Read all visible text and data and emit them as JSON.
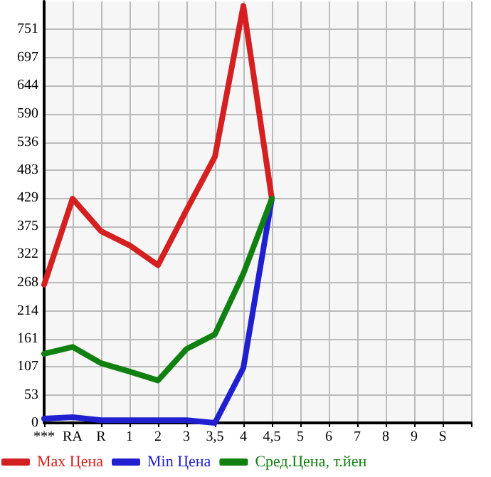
{
  "chart_data": {
    "type": "line",
    "categories": [
      "***",
      "RA",
      "R",
      "1",
      "2",
      "3",
      "3,5",
      "4",
      "4,5",
      "5",
      "6",
      "7",
      "8",
      "9",
      "S",
      null
    ],
    "series": [
      {
        "name": "Max Цена",
        "color": "#d42020",
        "values": [
          264,
          428,
          366,
          339,
          301,
          406,
          508,
          796,
          428,
          null,
          null,
          null,
          null,
          null,
          null,
          null
        ]
      },
      {
        "name": "Min Цена",
        "color": "#2020d0",
        "values": [
          8,
          11,
          5,
          5,
          5,
          5,
          0,
          105,
          428,
          null,
          null,
          null,
          null,
          null,
          null,
          null
        ]
      },
      {
        "name": "Сред.Цена, т.йен",
        "color": "#108010",
        "values": [
          132,
          145,
          114,
          98,
          81,
          141,
          169,
          285,
          428,
          null,
          null,
          null,
          null,
          null,
          null,
          null
        ]
      }
    ],
    "ylim": [
      0,
      804.6
    ],
    "yticks": [
      0,
      53,
      107,
      161,
      214,
      268,
      322,
      375,
      429,
      483,
      536,
      590,
      644,
      697,
      751
    ],
    "grid": true,
    "legend": "bottom",
    "marker": "none",
    "line_style": "solid"
  }
}
